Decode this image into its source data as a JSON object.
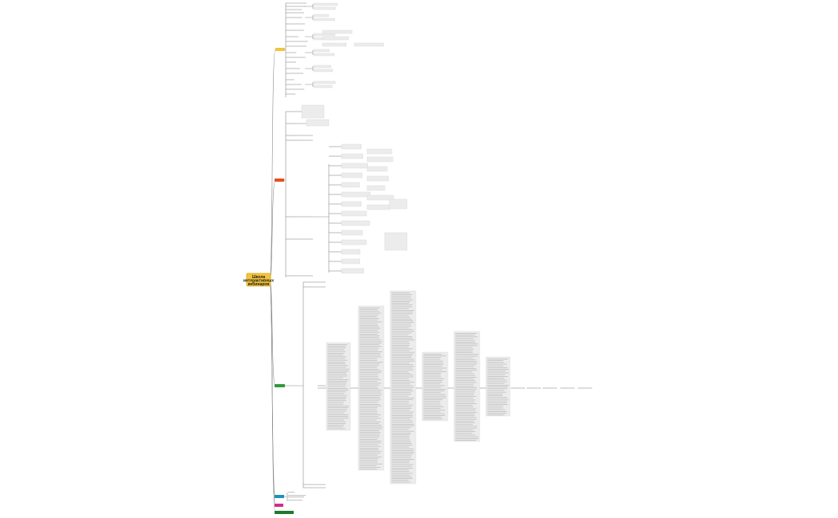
{
  "map": {
    "root": {
      "title_line1": "Школа",
      "title_line2": "интерактивных",
      "title_line3": "вебинаров",
      "color": "#f2c43c"
    },
    "branches": [
      {
        "color": "#f2c43c"
      },
      {
        "color": "#e8501d"
      },
      {
        "color": "#2f9a3c"
      },
      {
        "color": "#1f8fbf"
      },
      {
        "color": "#d42d86"
      },
      {
        "color": "#1d7a2e"
      }
    ]
  }
}
